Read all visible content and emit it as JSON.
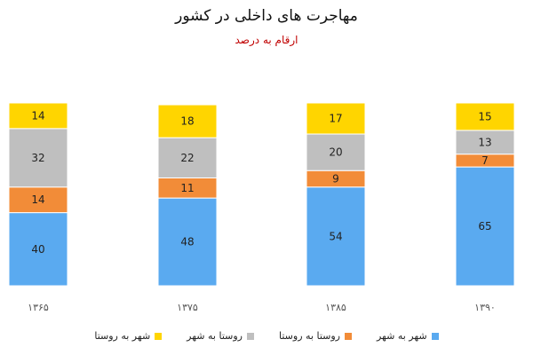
{
  "chart_data": {
    "type": "bar",
    "stacked": true,
    "title": "مهاجرت های داخلی در کشور",
    "subtitle": "ارقام به درصد",
    "categories": [
      "۱۳۶۵",
      "۱۳۷۵",
      "۱۳۸۵",
      "۱۳۹۰"
    ],
    "series": [
      {
        "name": "شهر به شهر",
        "color": "#5aaaf0",
        "values": [
          40,
          48,
          54,
          65
        ]
      },
      {
        "name": "روستا به روستا",
        "color": "#f28c38",
        "values": [
          14,
          11,
          9,
          7
        ]
      },
      {
        "name": "روستا به شهر",
        "color": "#bfbfbf",
        "values": [
          32,
          22,
          20,
          13
        ]
      },
      {
        "name": "شهر به روستا",
        "color": "#ffd500",
        "values": [
          14,
          18,
          17,
          15
        ]
      }
    ],
    "ylim": [
      0,
      100
    ],
    "grid": false,
    "legend": "bottom"
  }
}
